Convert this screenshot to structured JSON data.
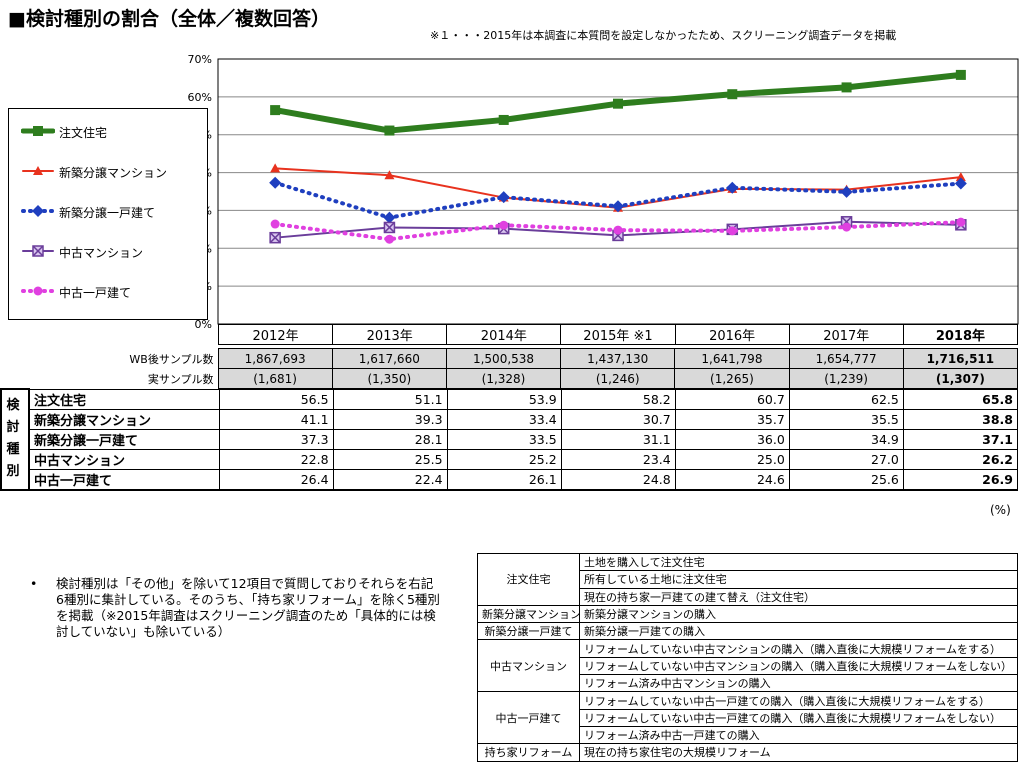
{
  "title": "■検討種別の割合（全体／複数回答）",
  "note": "※１・・・2015年は本調査に本質問を設定しなかったため、スクリーニング調査データを掲載",
  "chart_data": {
    "type": "line",
    "categories": [
      "2012年",
      "2013年",
      "2014年",
      "2015年 ※1",
      "2016年",
      "2017年",
      "2018年"
    ],
    "ylim": [
      0,
      70
    ],
    "yticks": [
      "0%",
      "10%",
      "20%",
      "30%",
      "40%",
      "50%",
      "60%",
      "70%"
    ],
    "grid": true,
    "legend_position": "left",
    "series": [
      {
        "name": "注文住宅",
        "values": [
          56.5,
          51.1,
          53.9,
          58.2,
          60.7,
          62.5,
          65.8
        ],
        "color": "#2e7d1e",
        "style": "solid-thick",
        "marker": "square"
      },
      {
        "name": "新築分譲マンション",
        "values": [
          41.1,
          39.3,
          33.4,
          30.7,
          35.7,
          35.5,
          38.8
        ],
        "color": "#e8321e",
        "style": "solid",
        "marker": "triangle"
      },
      {
        "name": "新築分譲一戸建て",
        "values": [
          37.3,
          28.1,
          33.5,
          31.1,
          36.0,
          34.9,
          37.1
        ],
        "color": "#1f3fbf",
        "style": "dotted",
        "marker": "diamond"
      },
      {
        "name": "中古マンション",
        "values": [
          22.8,
          25.5,
          25.2,
          23.4,
          25.0,
          27.0,
          26.2
        ],
        "color": "#6a3d9a",
        "style": "solid",
        "marker": "x-square"
      },
      {
        "name": "中古一戸建て",
        "values": [
          26.4,
          22.4,
          26.1,
          24.8,
          24.6,
          25.6,
          26.9
        ],
        "color": "#e040e0",
        "style": "dotted",
        "marker": "circle"
      }
    ]
  },
  "table": {
    "years": [
      "2012年",
      "2013年",
      "2014年",
      "2015年 ※1",
      "2016年",
      "2017年",
      "2018年"
    ],
    "wb_label": "WB後サンプル数",
    "wb": [
      "1,867,693",
      "1,617,660",
      "1,500,538",
      "1,437,130",
      "1,641,798",
      "1,654,777",
      "1,716,511"
    ],
    "real_label": "実サンプル数",
    "real": [
      "(1,681)",
      "(1,350)",
      "(1,328)",
      "(1,246)",
      "(1,265)",
      "(1,239)",
      "(1,307)"
    ],
    "category_label": "検討種別",
    "rows": [
      {
        "name": "注文住宅",
        "values": [
          "56.5",
          "51.1",
          "53.9",
          "58.2",
          "60.7",
          "62.5",
          "65.8"
        ]
      },
      {
        "name": "新築分譲マンション",
        "values": [
          "41.1",
          "39.3",
          "33.4",
          "30.7",
          "35.7",
          "35.5",
          "38.8"
        ]
      },
      {
        "name": "新築分譲一戸建て",
        "values": [
          "37.3",
          "28.1",
          "33.5",
          "31.1",
          "36.0",
          "34.9",
          "37.1"
        ]
      },
      {
        "name": "中古マンション",
        "values": [
          "22.8",
          "25.5",
          "25.2",
          "23.4",
          "25.0",
          "27.0",
          "26.2"
        ]
      },
      {
        "name": "中古一戸建て",
        "values": [
          "26.4",
          "22.4",
          "26.1",
          "24.8",
          "24.6",
          "25.6",
          "26.9"
        ]
      }
    ],
    "unit": "(%)"
  },
  "bullet": {
    "marker": "•",
    "text": "検討種別は「その他」を除いて12項目で質問しておりそれらを右記6種別に集計している。そのうち、「持ち家リフォーム」を除く5種別を掲載（※2015年調査はスクリーニング調査のため「具体的には検討していない」も除いている）"
  },
  "definitions": [
    {
      "category": "注文住宅",
      "items": [
        "土地を購入して注文住宅",
        "所有している土地に注文住宅",
        "現在の持ち家一戸建ての建て替え（注文住宅）"
      ]
    },
    {
      "category": "新築分譲マンション",
      "items": [
        "新築分譲マンションの購入"
      ]
    },
    {
      "category": "新築分譲一戸建て",
      "items": [
        "新築分譲一戸建ての購入"
      ]
    },
    {
      "category": "中古マンション",
      "items": [
        "リフォームしていない中古マンションの購入（購入直後に大規模リフォームをする）",
        "リフォームしていない中古マンションの購入（購入直後に大規模リフォームをしない）",
        "リフォーム済み中古マンションの購入"
      ]
    },
    {
      "category": "中古一戸建て",
      "items": [
        "リフォームしていない中古一戸建ての購入（購入直後に大規模リフォームをする）",
        "リフォームしていない中古一戸建ての購入（購入直後に大規模リフォームをしない）",
        "リフォーム済み中古一戸建ての購入"
      ]
    },
    {
      "category": "持ち家リフォーム",
      "items": [
        "現在の持ち家住宅の大規模リフォーム"
      ]
    }
  ]
}
